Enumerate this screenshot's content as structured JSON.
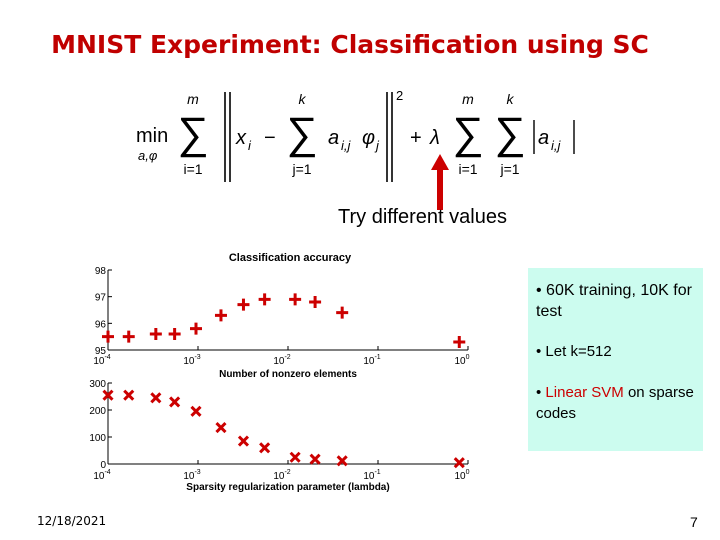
{
  "slide": {
    "title": "MNIST Experiment: Classification using SC",
    "caption": "Try different values",
    "bullets": [
      "60K training, 10K for test",
      "Let k=512"
    ],
    "bullet3_highlight": "Linear SVM",
    "bullet3_rest": " on sparse codes",
    "date": "12/18/2021",
    "page": "7"
  },
  "formula": {
    "min": "min",
    "min_sub": "a,φ",
    "sum1_top": "m",
    "sum1_bot": "i=1",
    "x": "x",
    "x_sub": "i",
    "sum2_top": "k",
    "sum2_bot": "j=1",
    "a": "a",
    "a_sub": "i,j",
    "phi": "φ",
    "phi_sub": "j",
    "sq": "2",
    "lambda": "λ",
    "sum3_top": "m",
    "sum3_bot": "i=1",
    "sum4_top": "k",
    "sum4_bot": "j=1",
    "abs_a": "a",
    "abs_sub": "i,j"
  },
  "colors": {
    "title": "#c00000",
    "marker": "#cc0000",
    "box": "#ccfcef"
  },
  "chart_data": [
    {
      "type": "scatter",
      "title": "Classification accuracy",
      "xlabel": "Number of nonzero elements",
      "xscale": "log",
      "x_ticks": [
        {
          "base": "10",
          "exp": "-4"
        },
        {
          "base": "10",
          "exp": "-3"
        },
        {
          "base": "10",
          "exp": "-2"
        },
        {
          "base": "10",
          "exp": "-1"
        },
        {
          "base": "10",
          "exp": "0"
        }
      ],
      "y_ticks": [
        "98",
        "97",
        "96",
        "95"
      ],
      "ylim": [
        95,
        98
      ],
      "marker": "+",
      "x": [
        0.0001,
        0.00017,
        0.00034,
        0.00055,
        0.00095,
        0.0018,
        0.0032,
        0.0055,
        0.012,
        0.02,
        0.04,
        0.8
      ],
      "values": [
        95.5,
        95.5,
        95.6,
        95.6,
        95.8,
        96.3,
        96.7,
        96.9,
        96.9,
        96.8,
        96.4,
        95.3
      ]
    },
    {
      "type": "scatter",
      "xlabel": "Sparsity regularization parameter (lambda)",
      "xscale": "log",
      "x_ticks": [
        {
          "base": "10",
          "exp": "-4"
        },
        {
          "base": "10",
          "exp": "-3"
        },
        {
          "base": "10",
          "exp": "-2"
        },
        {
          "base": "10",
          "exp": "-1"
        },
        {
          "base": "10",
          "exp": "0"
        }
      ],
      "y_ticks": [
        "300",
        "200",
        "100",
        "0"
      ],
      "ylim": [
        0,
        300
      ],
      "marker": "x",
      "x": [
        0.0001,
        0.00017,
        0.00034,
        0.00055,
        0.00095,
        0.0018,
        0.0032,
        0.0055,
        0.012,
        0.02,
        0.04,
        0.8
      ],
      "values": [
        255,
        255,
        245,
        230,
        195,
        135,
        85,
        60,
        25,
        18,
        12,
        5
      ]
    }
  ]
}
